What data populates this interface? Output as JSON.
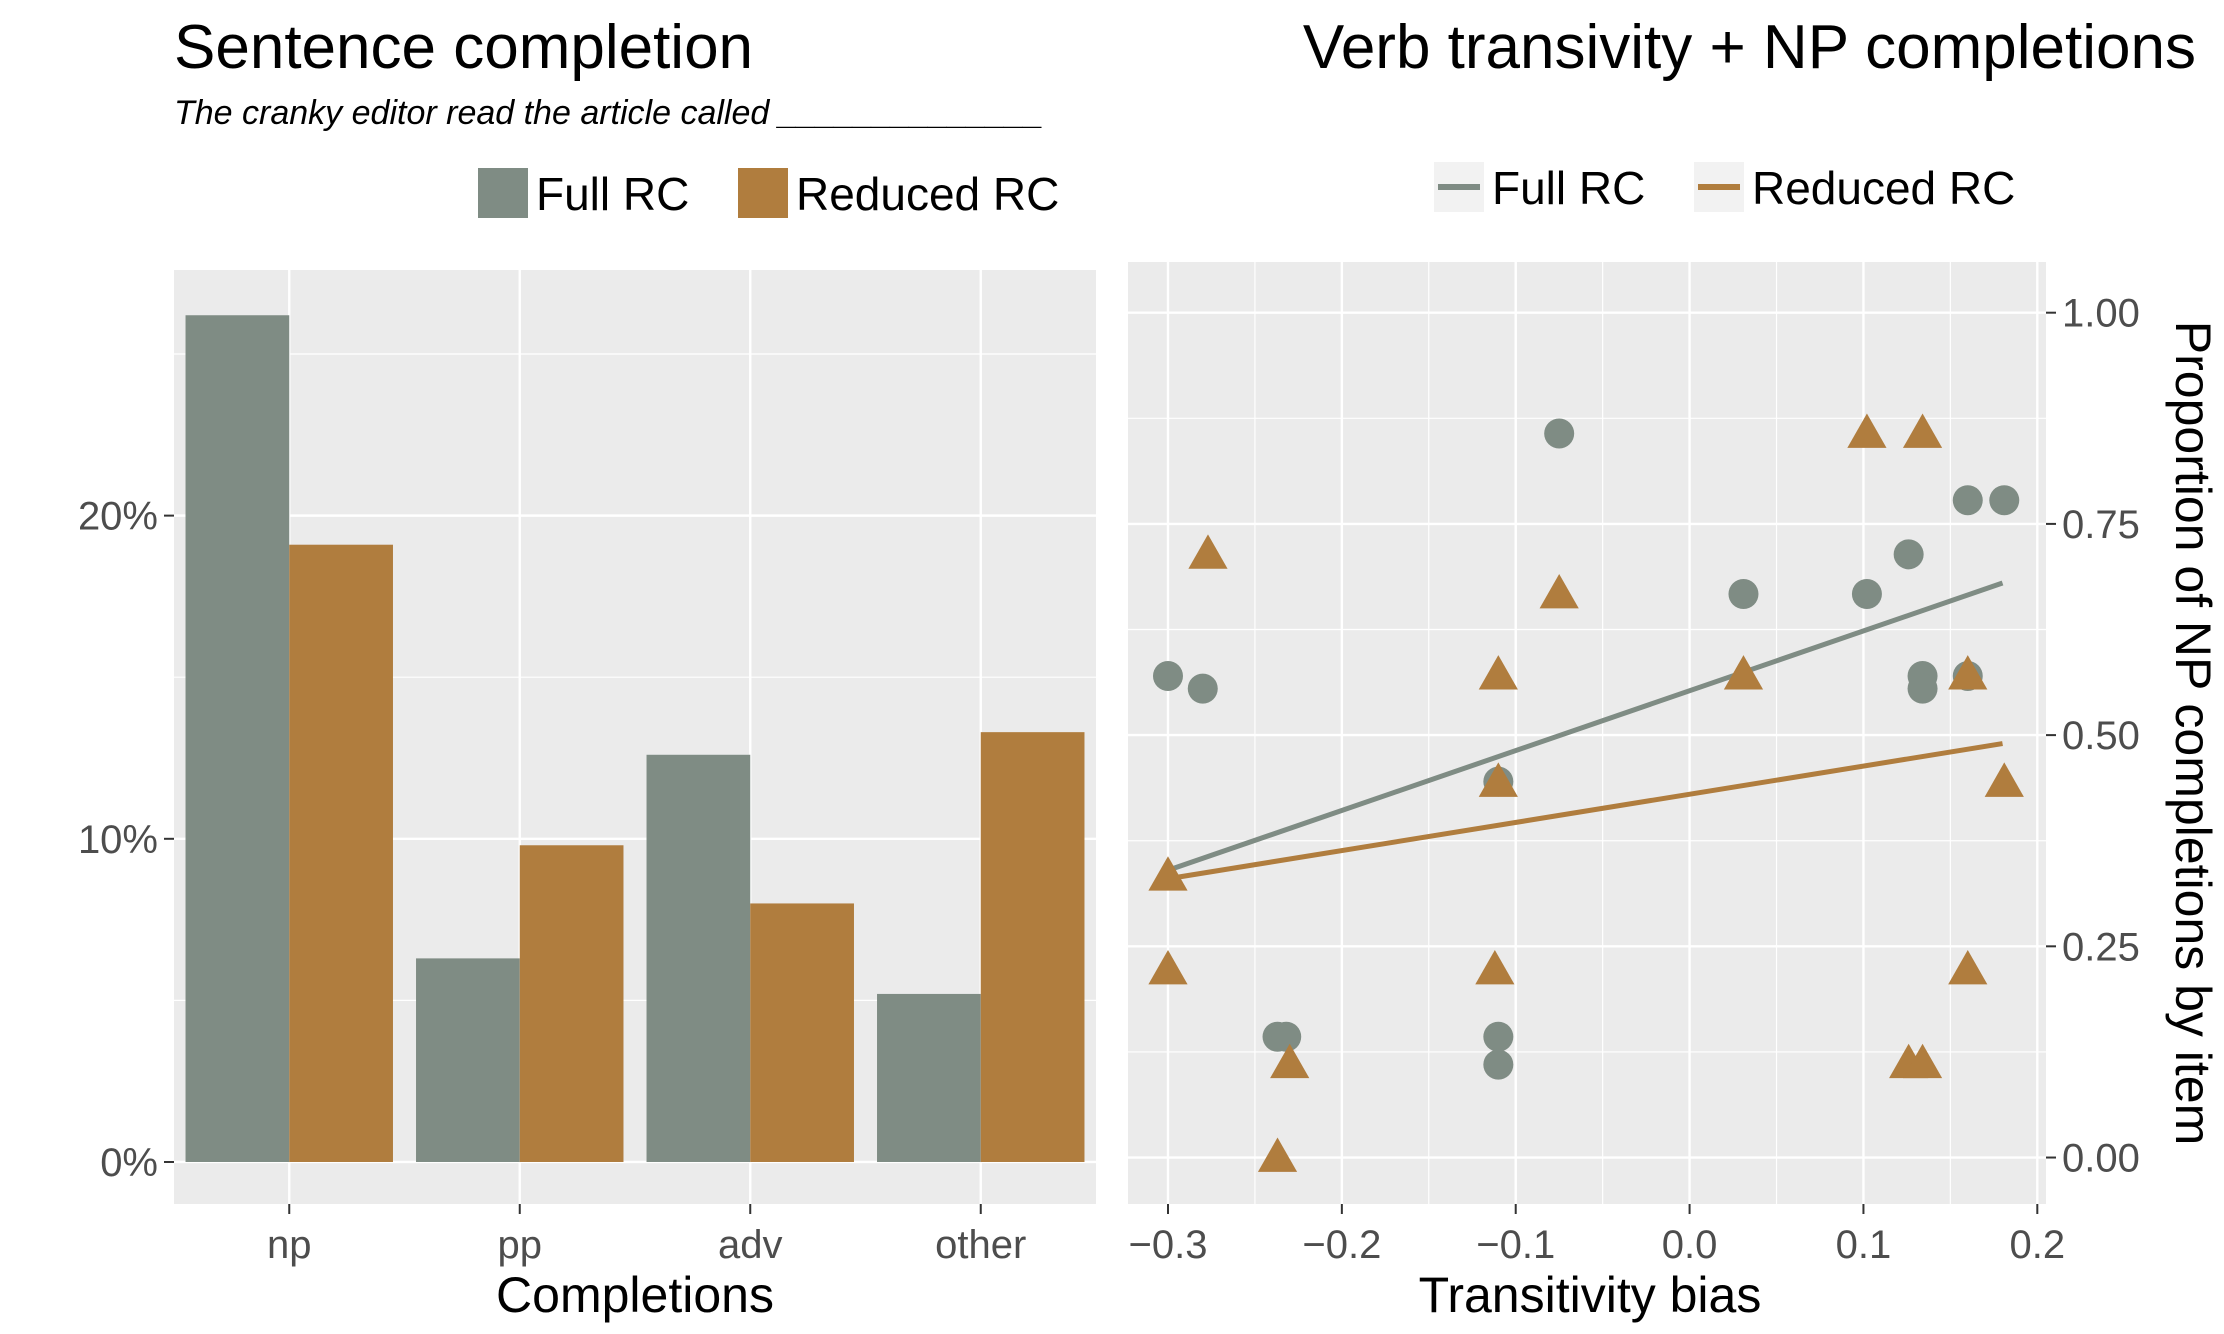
{
  "colors": {
    "full": "#7f8c84",
    "reduced": "#b07d3e",
    "panel": "#ebebeb",
    "grid": "#ffffff",
    "tick_text": "#4d4d4d"
  },
  "chart_data": [
    {
      "type": "bar",
      "title": "Sentence completion",
      "subtitle": "The cranky editor read the article called ______________",
      "xlabel": "Completions",
      "ylabel": "",
      "categories": [
        "np",
        "pp",
        "adv",
        "other"
      ],
      "series": [
        {
          "name": "Full RC",
          "values": [
            26.2,
            6.3,
            12.6,
            5.2
          ]
        },
        {
          "name": "Reduced RC",
          "values": [
            19.1,
            9.8,
            8.0,
            13.3
          ]
        }
      ],
      "ylim": [
        -1.3,
        27.6
      ],
      "yticks": [
        0,
        10,
        20
      ],
      "ytick_labels": [
        "0%",
        "10%",
        "20%"
      ],
      "legend_placement": "top",
      "grid": true
    },
    {
      "type": "scatter",
      "title": "Verb transivity + NP completions",
      "xlabel": "Transitivity bias",
      "ylabel": "Proportion of NP completions by item",
      "xlim": [
        -0.323,
        0.205
      ],
      "ylim": [
        -0.055,
        1.06
      ],
      "xticks": [
        -0.3,
        -0.2,
        -0.1,
        0.0,
        0.1,
        0.2
      ],
      "xtick_labels": [
        "−0.3",
        "−0.2",
        "−0.1",
        "0.0",
        "0.1",
        "0.2"
      ],
      "yticks": [
        0,
        0.25,
        0.5,
        0.75,
        1.0
      ],
      "ytick_labels": [
        "0.00",
        "0.25",
        "0.50",
        "0.75",
        "1.00"
      ],
      "yaxis_position": "right",
      "legend_placement": "top",
      "grid": true,
      "series": [
        {
          "name": "Full RC",
          "marker": "circle",
          "points": [
            [
              -0.3,
              0.57
            ],
            [
              -0.28,
              0.555
            ],
            [
              -0.075,
              0.857
            ],
            [
              -0.237,
              0.143
            ],
            [
              -0.232,
              0.143
            ],
            [
              -0.11,
              0.445
            ],
            [
              -0.11,
              0.143
            ],
            [
              -0.11,
              0.11
            ],
            [
              0.031,
              0.667
            ],
            [
              0.102,
              0.667
            ],
            [
              0.126,
              0.714
            ],
            [
              0.134,
              0.57
            ],
            [
              0.134,
              0.555
            ],
            [
              0.16,
              0.57
            ],
            [
              0.16,
              0.778
            ],
            [
              0.181,
              0.778
            ]
          ],
          "fit": [
            [
              -0.3,
              0.34
            ],
            [
              0.18,
              0.68
            ]
          ]
        },
        {
          "name": "Reduced RC",
          "marker": "triangle",
          "points": [
            [
              -0.3,
              0.333
            ],
            [
              -0.3,
              0.222
            ],
            [
              -0.277,
              0.714
            ],
            [
              -0.237,
              0.0
            ],
            [
              -0.23,
              0.111
            ],
            [
              -0.11,
              0.571
            ],
            [
              -0.11,
              0.444
            ],
            [
              -0.112,
              0.222
            ],
            [
              -0.075,
              0.667
            ],
            [
              0.031,
              0.571
            ],
            [
              0.102,
              0.857
            ],
            [
              0.134,
              0.857
            ],
            [
              0.126,
              0.111
            ],
            [
              0.134,
              0.111
            ],
            [
              0.16,
              0.571
            ],
            [
              0.16,
              0.222
            ],
            [
              0.181,
              0.444
            ]
          ],
          "fit": [
            [
              -0.3,
              0.33
            ],
            [
              0.18,
              0.49
            ]
          ]
        }
      ]
    }
  ]
}
